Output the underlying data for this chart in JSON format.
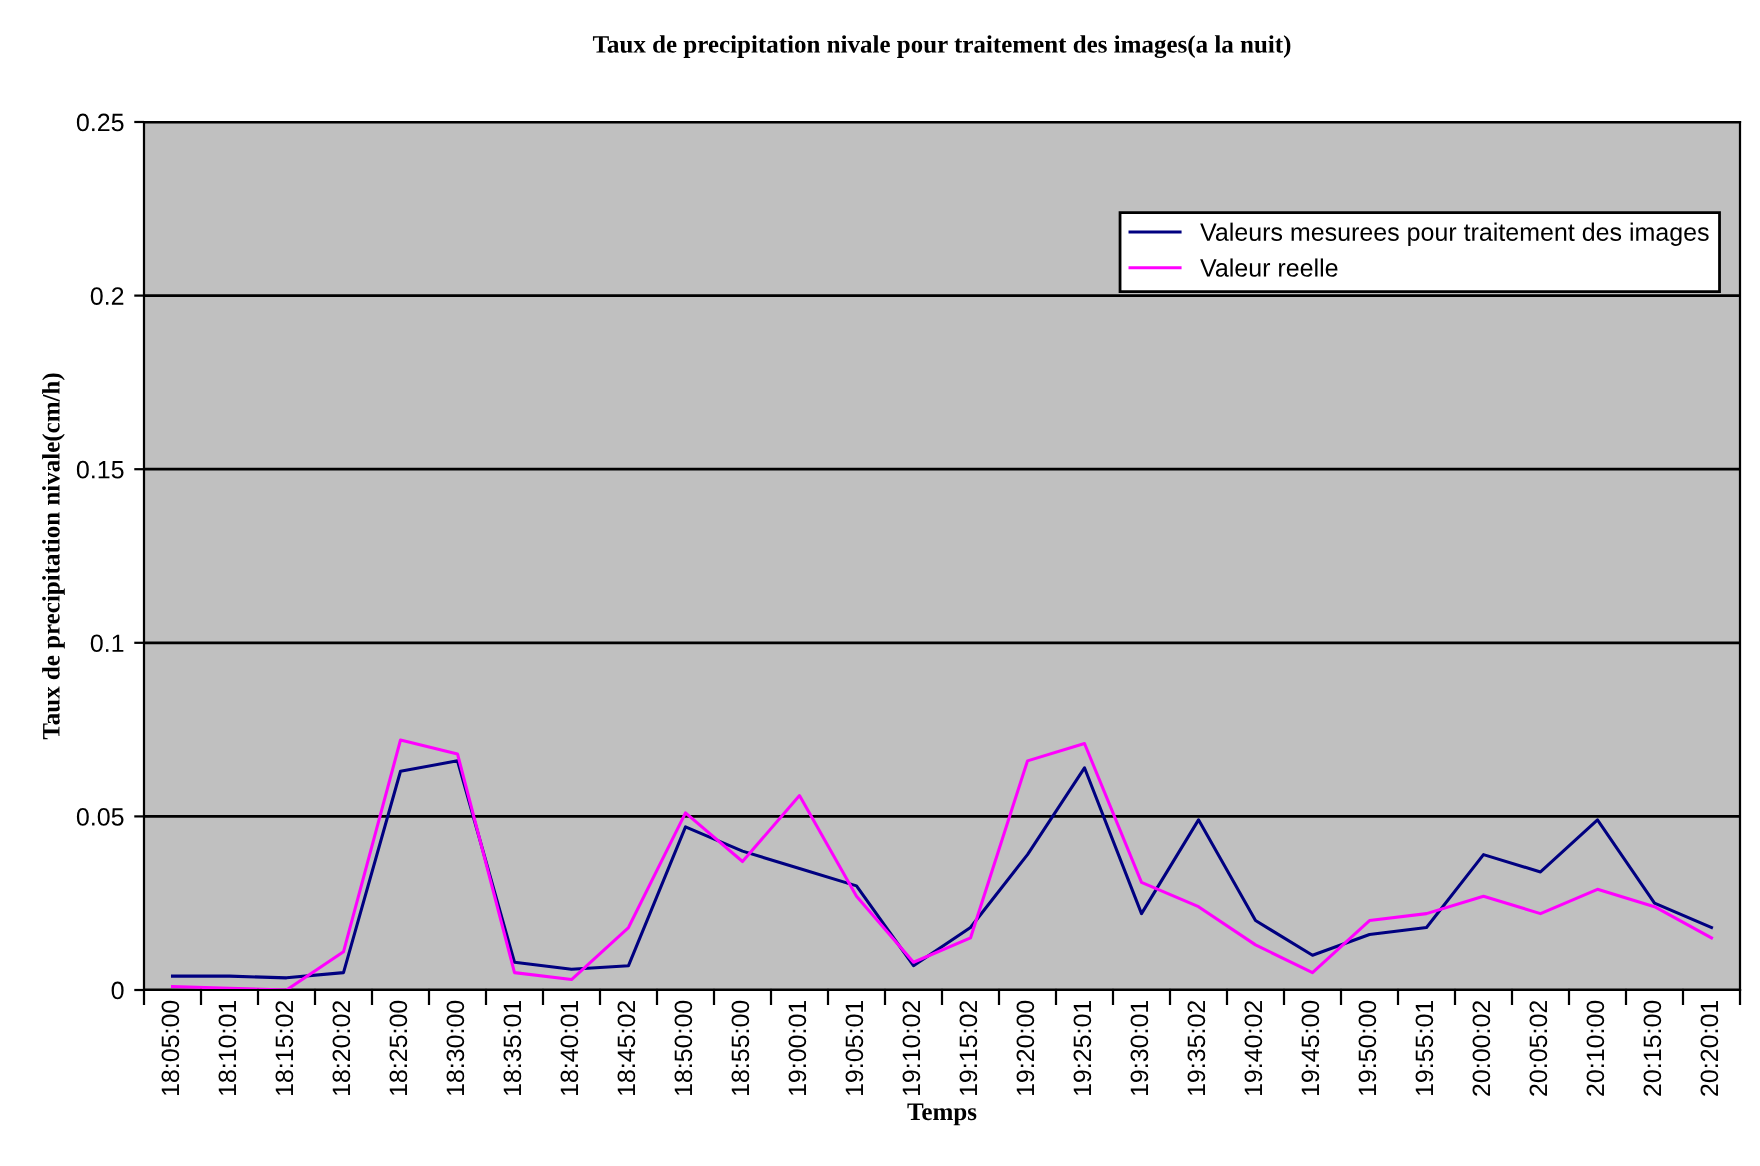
{
  "chart_data": {
    "type": "line",
    "title": "Taux de precipitation nivale pour traitement des images(a la nuit)",
    "xlabel": "Temps",
    "ylabel": "Taux de precipitation nivale(cm/h)",
    "categories": [
      "18:05:00",
      "18:10:01",
      "18:15:02",
      "18:20:02",
      "18:25:00",
      "18:30:00",
      "18:35:01",
      "18:40:01",
      "18:45:02",
      "18:50:00",
      "18:55:00",
      "19:00:01",
      "19:05:01",
      "19:10:02",
      "19:15:02",
      "19:20:00",
      "19:25:01",
      "19:30:01",
      "19:35:02",
      "19:40:02",
      "19:45:00",
      "19:50:00",
      "19:55:01",
      "20:00:02",
      "20:05:02",
      "20:10:00",
      "20:15:00",
      "20:20:01"
    ],
    "series": [
      {
        "name": "Valeurs mesurees pour traitement des images",
        "color": "#000080",
        "values": [
          0.004,
          0.004,
          0.0035,
          0.005,
          0.063,
          0.066,
          0.008,
          0.006,
          0.007,
          0.047,
          0.04,
          0.035,
          0.03,
          0.007,
          0.018,
          0.039,
          0.064,
          0.022,
          0.049,
          0.02,
          0.01,
          0.016,
          0.018,
          0.039,
          0.034,
          0.049,
          0.025,
          0.018
        ]
      },
      {
        "name": "Valeur reelle",
        "color": "#ff00ff",
        "values": [
          0.001,
          0.0005,
          0,
          0.011,
          0.072,
          0.068,
          0.005,
          0.003,
          0.018,
          0.051,
          0.037,
          0.056,
          0.027,
          0.008,
          0.015,
          0.066,
          0.071,
          0.031,
          0.024,
          0.013,
          0.005,
          0.02,
          0.022,
          0.027,
          0.022,
          0.029,
          0.024,
          0.015
        ]
      }
    ],
    "ylim": [
      0,
      0.25
    ],
    "yticks": [
      0,
      0.05,
      0.1,
      0.15,
      0.2,
      0.25
    ],
    "grid": "y",
    "legend": "top right",
    "marker": "none",
    "line_style": "solid"
  }
}
